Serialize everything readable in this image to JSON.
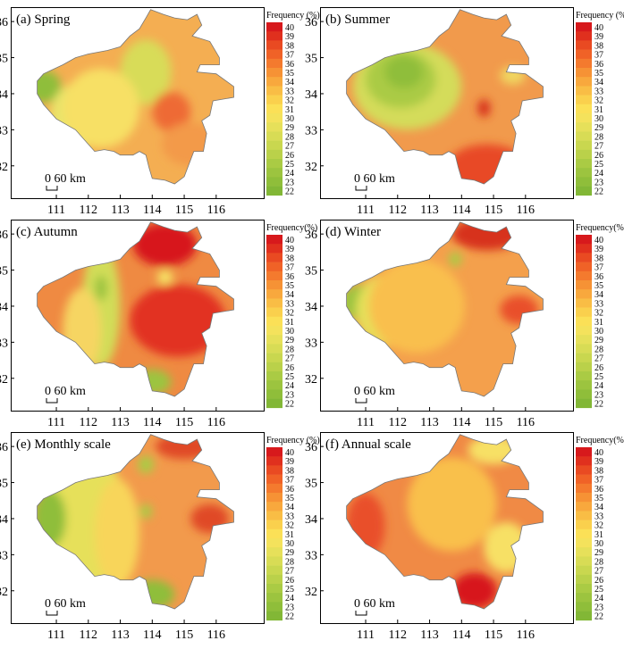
{
  "legend": {
    "title": "Frequency (%)",
    "ticks": [
      "40",
      "39",
      "38",
      "37",
      "36",
      "35",
      "34",
      "33",
      "32",
      "31",
      "30",
      "29",
      "28",
      "27",
      "26",
      "25",
      "24",
      "23",
      "22"
    ],
    "colors": [
      "#d7191c",
      "#e0301e",
      "#e94a22",
      "#f06227",
      "#f47a2e",
      "#f69235",
      "#f8a83d",
      "#f9bd45",
      "#fad04d",
      "#fbe057",
      "#f4e25c",
      "#e6e05a",
      "#d8dc55",
      "#c9d74f",
      "#bad14a",
      "#aacb44",
      "#9cc43f",
      "#8fbe3a",
      "#82b736"
    ]
  },
  "panels": [
    {
      "label": "(a) Spring",
      "legend_title": "Frequency (%)",
      "base": "#f4ae52",
      "blobs": [
        {
          "c": "#b7d24b",
          "lon": 113.7,
          "lat": 34.6,
          "rx": 0.55,
          "ry": 0.6
        },
        {
          "c": "#d8dc58",
          "lon": 113.8,
          "lat": 34.6,
          "rx": 0.8,
          "ry": 0.9
        },
        {
          "c": "#8fbe3a",
          "lon": 110.6,
          "lat": 34.2,
          "rx": 0.55,
          "ry": 0.45
        },
        {
          "c": "#e9e46a",
          "lon": 111.7,
          "lat": 33.4,
          "rx": 0.9,
          "ry": 0.9
        },
        {
          "c": "#f7e065",
          "lon": 112.4,
          "lat": 33.6,
          "rx": 1.2,
          "ry": 1.1
        },
        {
          "c": "#d7301f",
          "lon": 114.6,
          "lat": 33.5,
          "rx": 0.25,
          "ry": 0.3
        },
        {
          "c": "#ee6b36",
          "lon": 114.6,
          "lat": 33.5,
          "rx": 0.6,
          "ry": 0.55
        },
        {
          "c": "#f39a4a",
          "lon": 115.2,
          "lat": 32.6,
          "rx": 0.9,
          "ry": 0.6
        }
      ]
    },
    {
      "label": "(b) Summer",
      "legend_title": "Frequency (%)",
      "base": "#f19a4c",
      "blobs": [
        {
          "c": "#d4dc5a",
          "lon": 112.3,
          "lat": 34.2,
          "rx": 1.7,
          "ry": 1.2
        },
        {
          "c": "#aacb44",
          "lon": 112.1,
          "lat": 34.4,
          "rx": 1.1,
          "ry": 0.8
        },
        {
          "c": "#8fbe3a",
          "lon": 112.2,
          "lat": 34.6,
          "rx": 0.6,
          "ry": 0.45
        },
        {
          "c": "#d7191c",
          "lon": 114.9,
          "lat": 31.8,
          "rx": 0.9,
          "ry": 0.45
        },
        {
          "c": "#e84a26",
          "lon": 114.8,
          "lat": 31.9,
          "rx": 1.3,
          "ry": 0.7
        },
        {
          "c": "#d7301f",
          "lon": 114.7,
          "lat": 33.6,
          "rx": 0.2,
          "ry": 0.25
        },
        {
          "c": "#f0d660",
          "lon": 115.6,
          "lat": 34.5,
          "rx": 0.4,
          "ry": 0.25
        }
      ]
    },
    {
      "label": "(c) Autumn",
      "legend_title": "Frequency(%)",
      "base": "#ef8a42",
      "blobs": [
        {
          "c": "#d7191c",
          "lon": 114.5,
          "lat": 33.4,
          "rx": 0.9,
          "ry": 0.75
        },
        {
          "c": "#e23322",
          "lon": 114.8,
          "lat": 33.6,
          "rx": 1.5,
          "ry": 1.0
        },
        {
          "c": "#d7191c",
          "lon": 114.4,
          "lat": 35.7,
          "rx": 1.0,
          "ry": 0.6
        },
        {
          "c": "#f6e566",
          "lon": 114.4,
          "lat": 34.8,
          "rx": 0.25,
          "ry": 0.2
        },
        {
          "c": "#d2dd58",
          "lon": 112.4,
          "lat": 34.0,
          "rx": 0.6,
          "ry": 1.7
        },
        {
          "c": "#9cc43f",
          "lon": 112.4,
          "lat": 34.5,
          "rx": 0.2,
          "ry": 0.35
        },
        {
          "c": "#9cc43f",
          "lon": 114.0,
          "lat": 31.9,
          "rx": 0.6,
          "ry": 0.35
        },
        {
          "c": "#f6d562",
          "lon": 111.8,
          "lat": 33.3,
          "rx": 0.6,
          "ry": 1.2
        }
      ]
    },
    {
      "label": "(d) Winter",
      "legend_title": "Frequency(%)",
      "base": "#f4a04c",
      "blobs": [
        {
          "c": "#9cc43f",
          "lon": 110.9,
          "lat": 34.1,
          "rx": 0.7,
          "ry": 0.5
        },
        {
          "c": "#e6e05a",
          "lon": 111.7,
          "lat": 33.9,
          "rx": 1.0,
          "ry": 1.0
        },
        {
          "c": "#f9bf4d",
          "lon": 112.6,
          "lat": 34.0,
          "rx": 1.5,
          "ry": 1.3
        },
        {
          "c": "#d7301f",
          "lon": 114.8,
          "lat": 36.0,
          "rx": 1.1,
          "ry": 0.45
        },
        {
          "c": "#e9502a",
          "lon": 115.8,
          "lat": 33.9,
          "rx": 0.6,
          "ry": 0.4
        },
        {
          "c": "#aacb44",
          "lon": 113.8,
          "lat": 35.3,
          "rx": 0.2,
          "ry": 0.2
        }
      ]
    },
    {
      "label": "(e) Monthly scale",
      "legend_title": "Frequency (%)",
      "base": "#f29a4c",
      "blobs": [
        {
          "c": "#e6e05a",
          "lon": 111.9,
          "lat": 33.9,
          "rx": 1.4,
          "ry": 1.9
        },
        {
          "c": "#8fbe3a",
          "lon": 110.8,
          "lat": 34.0,
          "rx": 0.5,
          "ry": 0.8
        },
        {
          "c": "#f8d55a",
          "lon": 112.9,
          "lat": 33.6,
          "rx": 0.7,
          "ry": 1.5
        },
        {
          "c": "#aacb44",
          "lon": 113.8,
          "lat": 35.5,
          "rx": 0.25,
          "ry": 0.25
        },
        {
          "c": "#aacb44",
          "lon": 113.8,
          "lat": 34.2,
          "rx": 0.2,
          "ry": 0.2
        },
        {
          "c": "#8fbe3a",
          "lon": 114.0,
          "lat": 31.9,
          "rx": 0.7,
          "ry": 0.4
        },
        {
          "c": "#e04a25",
          "lon": 115.8,
          "lat": 34.0,
          "rx": 0.6,
          "ry": 0.4
        },
        {
          "c": "#e04a25",
          "lon": 115.0,
          "lat": 36.0,
          "rx": 0.9,
          "ry": 0.35
        }
      ]
    },
    {
      "label": "(f) Annual scale",
      "legend_title": "Frequency(%)",
      "base": "#f08a45",
      "blobs": [
        {
          "c": "#f7e065",
          "lon": 113.6,
          "lat": 34.6,
          "rx": 0.8,
          "ry": 0.8
        },
        {
          "c": "#aacb44",
          "lon": 113.6,
          "lat": 34.6,
          "rx": 0.3,
          "ry": 0.3
        },
        {
          "c": "#f9c04c",
          "lon": 113.7,
          "lat": 34.4,
          "rx": 1.4,
          "ry": 1.3
        },
        {
          "c": "#d7191c",
          "lon": 114.4,
          "lat": 32.0,
          "rx": 0.7,
          "ry": 0.5
        },
        {
          "c": "#f7e065",
          "lon": 115.4,
          "lat": 33.2,
          "rx": 0.7,
          "ry": 0.7
        },
        {
          "c": "#f7e065",
          "lon": 115.0,
          "lat": 35.9,
          "rx": 0.8,
          "ry": 0.4
        },
        {
          "c": "#e9502a",
          "lon": 111.0,
          "lat": 33.8,
          "rx": 0.6,
          "ry": 0.9
        }
      ]
    }
  ],
  "x_ticks": [
    "111",
    "112",
    "113",
    "114",
    "115",
    "116"
  ],
  "y_ticks": [
    "36",
    "35",
    "34",
    "33",
    "32"
  ],
  "scale_bar": "0 60 km"
}
